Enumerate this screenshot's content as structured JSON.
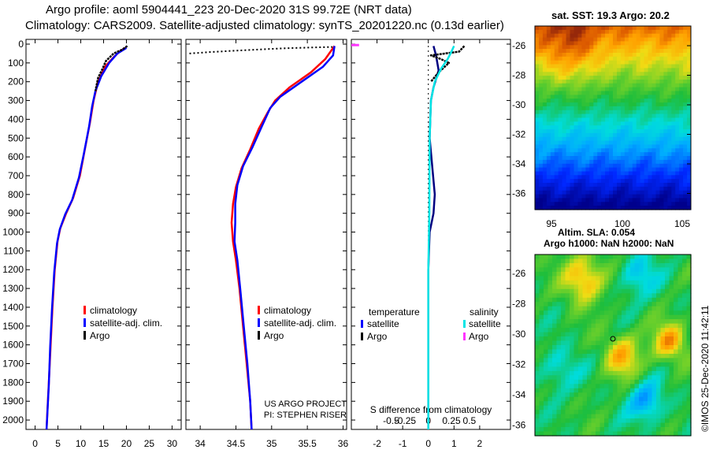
{
  "header": {
    "line1": "Argo profile: aoml 5904441_223 20-Dec-2020 31S 99.72E (NRT data)",
    "line2": "Climatology: CARS2009. Satellite-adjusted climatology: synTS_20201220.nc (0.13d earlier)"
  },
  "colors": {
    "climatology": "#ff0000",
    "satellite": "#0000ff",
    "argo": "#000000",
    "sat_salinity": "#00e5e5",
    "argo_salinity": "#ff33ff"
  },
  "chart_data": [
    {
      "type": "line",
      "name": "temperature-profile",
      "xlim": [
        -2,
        32
      ],
      "ylim": [
        0,
        2050
      ],
      "xticks": [
        0,
        5,
        10,
        15,
        20,
        25,
        30
      ],
      "yticks": [
        0,
        100,
        200,
        300,
        400,
        500,
        600,
        700,
        800,
        900,
        1000,
        1100,
        1200,
        1300,
        1400,
        1500,
        1600,
        1700,
        1800,
        1900,
        2000
      ],
      "legend": [
        "climatology",
        "satellite-adj. clim.",
        "Argo"
      ],
      "series": [
        {
          "name": "climatology",
          "points": [
            [
              19.8,
              20
            ],
            [
              18.5,
              40
            ],
            [
              17.2,
              70
            ],
            [
              15.3,
              120
            ],
            [
              13.8,
              200
            ],
            [
              12.8,
              300
            ],
            [
              12.0,
              420
            ],
            [
              10.9,
              560
            ],
            [
              9.8,
              700
            ],
            [
              8.3,
              820
            ],
            [
              6.8,
              900
            ],
            [
              5.5,
              980
            ],
            [
              4.9,
              1050
            ],
            [
              4.3,
              1200
            ],
            [
              3.8,
              1400
            ],
            [
              3.4,
              1600
            ],
            [
              3.0,
              1800
            ],
            [
              2.7,
              1950
            ],
            [
              2.5,
              2050
            ]
          ]
        },
        {
          "name": "satellite-adj. clim.",
          "points": [
            [
              20.0,
              20
            ],
            [
              18.0,
              50
            ],
            [
              16.2,
              100
            ],
            [
              14.5,
              170
            ],
            [
              13.2,
              250
            ],
            [
              12.5,
              330
            ],
            [
              11.8,
              440
            ],
            [
              10.7,
              580
            ],
            [
              9.6,
              710
            ],
            [
              8.1,
              830
            ],
            [
              6.6,
              905
            ],
            [
              5.4,
              985
            ],
            [
              4.8,
              1060
            ],
            [
              4.2,
              1210
            ],
            [
              3.7,
              1410
            ],
            [
              3.3,
              1610
            ],
            [
              3.0,
              1810
            ],
            [
              2.7,
              1960
            ],
            [
              2.5,
              2050
            ]
          ]
        },
        {
          "name": "Argo",
          "points": [
            [
              20.2,
              10
            ],
            [
              19.0,
              30
            ],
            [
              17.2,
              50
            ],
            [
              15.5,
              90
            ],
            [
              14.8,
              130
            ],
            [
              13.8,
              180
            ],
            [
              13.2,
              250
            ]
          ]
        }
      ]
    },
    {
      "type": "line",
      "name": "salinity-profile",
      "xlim": [
        33.8,
        36.05
      ],
      "ylim": [
        0,
        2050
      ],
      "xticks": [
        34,
        34.5,
        35,
        35.5,
        36
      ],
      "legend": [
        "climatology",
        "satellite-adj. clim.",
        "Argo"
      ],
      "annotations": [
        "US ARGO PROJECT",
        "PI: STEPHEN RISER"
      ],
      "series": [
        {
          "name": "climatology",
          "points": [
            [
              35.88,
              10
            ],
            [
              35.75,
              80
            ],
            [
              35.55,
              150
            ],
            [
              35.25,
              230
            ],
            [
              35.05,
              300
            ],
            [
              34.95,
              360
            ],
            [
              34.82,
              450
            ],
            [
              34.7,
              560
            ],
            [
              34.58,
              660
            ],
            [
              34.5,
              760
            ],
            [
              34.46,
              850
            ],
            [
              34.44,
              950
            ],
            [
              34.46,
              1050
            ],
            [
              34.5,
              1150
            ],
            [
              34.55,
              1300
            ],
            [
              34.6,
              1500
            ],
            [
              34.65,
              1700
            ],
            [
              34.7,
              1900
            ],
            [
              34.72,
              2050
            ]
          ]
        },
        {
          "name": "satellite-adj. clim.",
          "points": [
            [
              35.88,
              10
            ],
            [
              35.86,
              60
            ],
            [
              35.72,
              120
            ],
            [
              35.42,
              200
            ],
            [
              35.12,
              280
            ],
            [
              34.98,
              340
            ],
            [
              34.86,
              440
            ],
            [
              34.73,
              550
            ],
            [
              34.6,
              650
            ],
            [
              34.52,
              750
            ],
            [
              34.49,
              850
            ],
            [
              34.49,
              950
            ],
            [
              34.48,
              1050
            ],
            [
              34.52,
              1150
            ],
            [
              34.56,
              1300
            ],
            [
              34.61,
              1500
            ],
            [
              34.66,
              1700
            ],
            [
              34.7,
              1900
            ],
            [
              34.72,
              2050
            ]
          ]
        },
        {
          "name": "Argo",
          "points": [
            [
              33.85,
              50
            ],
            [
              34.15,
              42
            ],
            [
              34.5,
              35
            ],
            [
              34.85,
              28
            ],
            [
              35.2,
              22
            ],
            [
              35.55,
              18
            ],
            [
              35.85,
              15
            ]
          ]
        }
      ]
    },
    {
      "type": "line",
      "name": "difference-from-climatology",
      "xlim": [
        -3,
        3.2
      ],
      "ylim": [
        0,
        2050
      ],
      "xticks": [
        -2,
        -1,
        0,
        1,
        2
      ],
      "xticklabels": [
        "-2",
        "-0.5",
        "-0.25",
        "-1",
        "0",
        "0",
        "0.25",
        "1",
        "0.5",
        "2"
      ],
      "xlabel": "S difference from climatology",
      "legend": {
        "temperature_title": "temperature",
        "salinity_title": "salinity",
        "entries": [
          "satellite",
          "Argo",
          "satellite",
          "Argo"
        ]
      },
      "series": [
        {
          "name": "temperature satellite",
          "points": [
            [
              0.2,
              10
            ],
            [
              0.3,
              60
            ],
            [
              0.4,
              140
            ],
            [
              0.2,
              230
            ],
            [
              0.1,
              300
            ],
            [
              0.05,
              500
            ],
            [
              0.25,
              800
            ],
            [
              0.2,
              900
            ],
            [
              0.05,
              1000
            ],
            [
              0,
              1200
            ],
            [
              0,
              1500
            ],
            [
              0,
              2050
            ]
          ]
        },
        {
          "name": "temperature Argo",
          "points": [
            [
              1.4,
              10
            ],
            [
              1.2,
              40
            ],
            [
              0.1,
              60
            ],
            [
              0.5,
              80
            ],
            [
              0.8,
              100
            ],
            [
              0.4,
              150
            ],
            [
              0.1,
              200
            ]
          ]
        },
        {
          "name": "salinity satellite",
          "points": [
            [
              1.0,
              10
            ],
            [
              0.9,
              40
            ],
            [
              0.75,
              80
            ],
            [
              0.5,
              130
            ],
            [
              0.25,
              200
            ],
            [
              0.1,
              300
            ],
            [
              0.05,
              500
            ],
            [
              0.04,
              900
            ],
            [
              0,
              1200
            ],
            [
              0,
              2050
            ]
          ]
        },
        {
          "name": "salinity Argo",
          "points": [
            [
              -3.0,
              5
            ],
            [
              -2.7,
              5
            ]
          ]
        }
      ]
    }
  ],
  "sst_map": {
    "title": "sat. SST: 19.3 Argo: 20.2",
    "yticks": [
      "-26",
      "-28",
      "-30",
      "-32",
      "-34",
      "-36"
    ],
    "xticks": [
      "95",
      "100",
      "105"
    ]
  },
  "sla_map": {
    "title1": "Altim. SLA: 0.054",
    "title2": "Argo h1000: NaN h2000: NaN",
    "yticks": [
      "-26",
      "-28",
      "-30",
      "-32",
      "-34",
      "-36"
    ]
  },
  "footer_stamp": "©IMOS 25-Dec-2020 11:42:11"
}
